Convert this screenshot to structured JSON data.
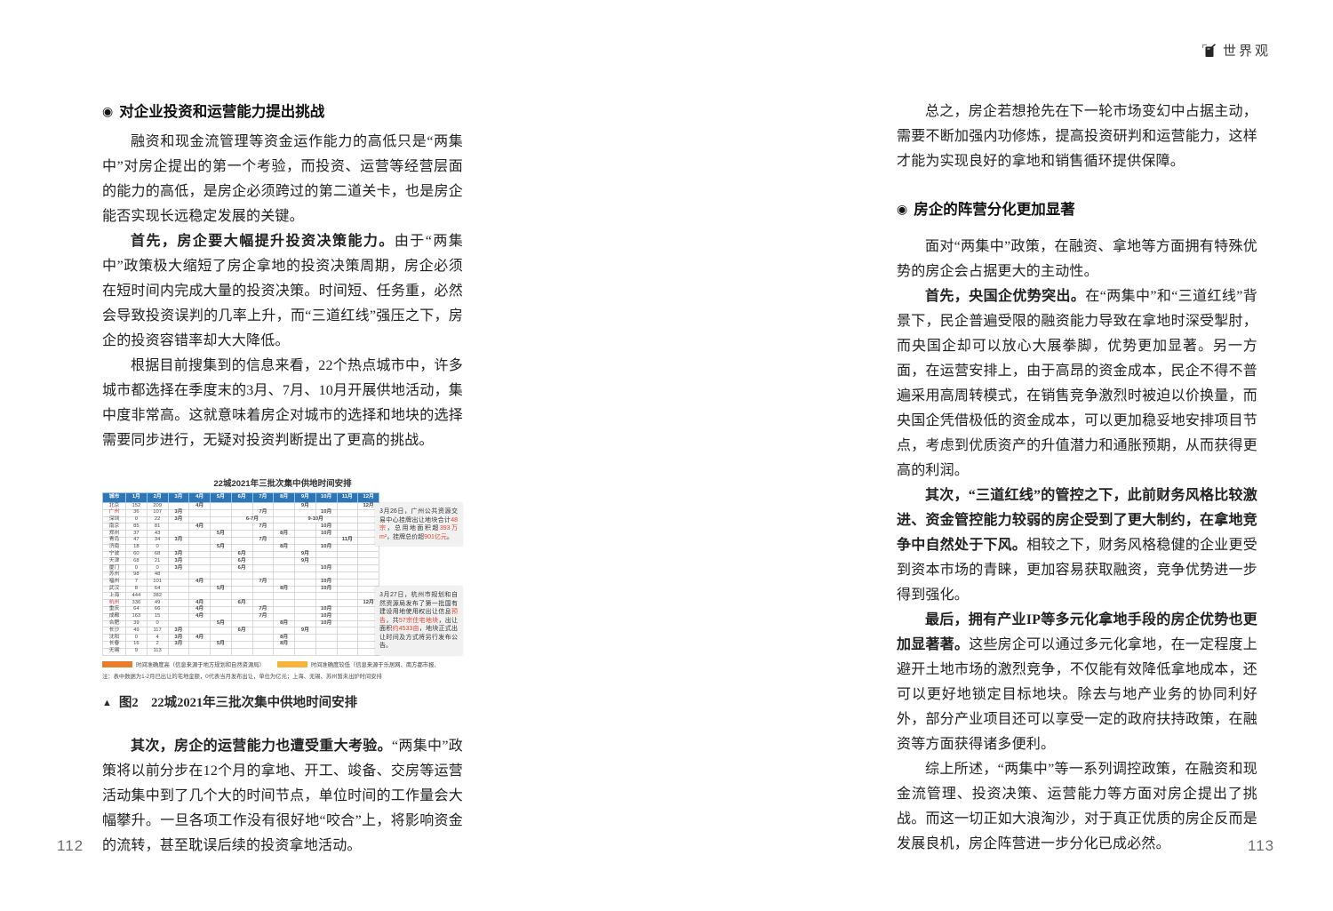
{
  "header": {
    "brand": "世界观"
  },
  "page_left": {
    "page_number": "112",
    "heading_bullet": "◉",
    "section_heading": "对企业投资和运营能力提出挑战",
    "paragraphs": [
      {
        "bold": "",
        "text": "融资和现金流管理等资金运作能力的高低只是“两集中”对房企提出的第一个考验，而投资、运营等经营层面的能力的高低，是房企必须跨过的第二道关卡，也是房企能否实现长远稳定发展的关键。"
      },
      {
        "bold": "首先，房企要大幅提升投资决策能力。",
        "text": "由于“两集中”政策极大缩短了房企拿地的投资决策周期，房企必须在短时间内完成大量的投资决策。时间短、任务重，必然会导致投资误判的几率上升，而“三道红线”强压之下，房企的投资容错率却大大降低。"
      },
      {
        "bold": "",
        "text": "根据目前搜集到的信息来看，22个热点城市中，许多城市都选择在季度末的3月、7月、10月开展供地活动，集中度非常高。这就意味着房企对城市的选择和地块的选择需要同步进行，无疑对投资判断提出了更高的挑战。"
      }
    ],
    "caption_marker": "▲",
    "caption": "图2　22城2021年三批次集中供地时间安排",
    "paragraphs_after": [
      {
        "bold": "其次，房企的运营能力也遭受重大考验。",
        "text": "“两集中”政策将以前分步在12个月的拿地、开工、竣备、交房等运营活动集中到了几个大的时间节点，单位时间的工作量会大幅攀升。一旦各项工作没有很好地“咬合”上，将影响资金的流转，甚至耽误后续的投资拿地活动。"
      }
    ]
  },
  "page_right": {
    "page_number": "113",
    "heading_bullet": "◉",
    "paragraphs_top": [
      {
        "bold": "",
        "text": "总之，房企若想抢先在下一轮市场变幻中占据主动，需要不断加强内功修炼，提高投资研判和运营能力，这样才能为实现良好的拿地和销售循环提供保障。"
      }
    ],
    "section_heading": "房企的阵营分化更加显著",
    "paragraphs": [
      {
        "bold": "",
        "text": "面对“两集中”政策，在融资、拿地等方面拥有特殊优势的房企会占据更大的主动性。"
      },
      {
        "bold": "首先，央国企优势突出。",
        "text": "在“两集中”和“三道红线”背景下，民企普遍受限的融资能力导致在拿地时深受掣肘，而央国企却可以放心大展拳脚，优势更加显著。另一方面，在运营安排上，由于高昂的资金成本，民企不得不普遍采用高周转模式，在销售竞争激烈时被迫以价换量，而央国企凭借极低的资金成本，可以更加稳妥地安排项目节点，考虑到优质资产的升值潜力和通胀预期，从而获得更高的利润。"
      },
      {
        "bold": "其次，“三道红线”的管控之下，此前财务风格比较激进、资金管控能力较弱的房企受到了更大制约，在拿地竞争中自然处于下风。",
        "text": "相较之下，财务风格稳健的企业更受到资本市场的青睐，更加容易获取融资，竞争优势进一步得到强化。"
      },
      {
        "bold": "最后，拥有产业IP等多元化拿地手段的房企优势也更加显著著。",
        "text": "这些房企可以通过多元化拿地，在一定程度上避开土地市场的激烈竞争，不仅能有效降低拿地成本，还可以更好地锁定目标地块。除去与地产业务的协同利好外，部分产业项目还可以享受一定的政府扶持政策，在融资等方面获得诸多便利。"
      },
      {
        "bold": "",
        "text": "综上所述，“两集中”等一系列调控政策，在融资和现金流管理、投资决策、运营能力等方面对房企提出了挑战。而这一切正如大浪淘沙，对于真正优质的房企反而是发展良机，房企阵营进一步分化已成必然。"
      }
    ]
  },
  "figure": {
    "title": "22城2021年三批次集中供地时间安排",
    "columns": [
      "城市",
      "1月",
      "2月",
      "3月",
      "4月",
      "5月",
      "6月",
      "7月",
      "8月",
      "9月",
      "10月",
      "11月",
      "12月"
    ],
    "colors": {
      "header_blue": "#2e75b6",
      "high_orange": "#e87d2b",
      "low_yellow": "#f6b43a",
      "city_red": "#d0342c",
      "annotation_red": "#e8442e"
    },
    "rows": [
      {
        "city": "北京",
        "red": false,
        "jan": "152",
        "feb": "209",
        "cells": [
          {
            "m": 4,
            "span": 1,
            "label": "4月",
            "lvl": "high"
          },
          {
            "m": 9,
            "span": 1,
            "label": "9月",
            "lvl": "high"
          },
          {
            "m": 12,
            "span": 1,
            "label": "12月",
            "lvl": "high"
          }
        ]
      },
      {
        "city": "广州",
        "red": true,
        "jan": "36",
        "feb": "107",
        "cells": [
          {
            "m": 3,
            "span": 1,
            "label": "3月",
            "lvl": "high"
          },
          {
            "m": 7,
            "span": 1,
            "label": "7月",
            "lvl": "low"
          },
          {
            "m": 10,
            "span": 1,
            "label": "10月",
            "lvl": "low"
          }
        ]
      },
      {
        "city": "深圳",
        "red": false,
        "jan": "0",
        "feb": "22",
        "cells": [
          {
            "m": 3,
            "span": 1,
            "label": "3月",
            "lvl": "high"
          },
          {
            "m": 6,
            "span": 2,
            "label": "6-7月",
            "lvl": "high"
          },
          {
            "m": 9,
            "span": 2,
            "label": "9-10月",
            "lvl": "high"
          }
        ]
      },
      {
        "city": "南京",
        "red": false,
        "jan": "85",
        "feb": "81",
        "cells": [
          {
            "m": 4,
            "span": 1,
            "label": "4月",
            "lvl": "high"
          },
          {
            "m": 7,
            "span": 1,
            "label": "7月",
            "lvl": "low"
          },
          {
            "m": 10,
            "span": 1,
            "label": "10月",
            "lvl": "low"
          }
        ]
      },
      {
        "city": "郑州",
        "red": false,
        "jan": "37",
        "feb": "43",
        "cells": [
          {
            "m": 5,
            "span": 1,
            "label": "5月",
            "lvl": "low"
          },
          {
            "m": 8,
            "span": 1,
            "label": "8月",
            "lvl": "high"
          },
          {
            "m": 10,
            "span": 1,
            "label": "10月",
            "lvl": "low"
          }
        ]
      },
      {
        "city": "青岛",
        "red": false,
        "jan": "47",
        "feb": "34",
        "cells": [
          {
            "m": 3,
            "span": 1,
            "label": "3月",
            "lvl": "high"
          },
          {
            "m": 7,
            "span": 1,
            "label": "7月",
            "lvl": "low"
          },
          {
            "m": 11,
            "span": 1,
            "label": "11月",
            "lvl": "low"
          }
        ]
      },
      {
        "city": "济南",
        "red": false,
        "jan": "18",
        "feb": "0",
        "cells": [
          {
            "m": 5,
            "span": 1,
            "label": "5月",
            "lvl": "low"
          },
          {
            "m": 8,
            "span": 1,
            "label": "8月",
            "lvl": "high"
          },
          {
            "m": 10,
            "span": 1,
            "label": "10月",
            "lvl": "high"
          }
        ]
      },
      {
        "city": "宁波",
        "red": false,
        "jan": "60",
        "feb": "68",
        "cells": [
          {
            "m": 3,
            "span": 1,
            "label": "3月",
            "lvl": "low"
          },
          {
            "m": 6,
            "span": 1,
            "label": "6月",
            "lvl": "low"
          },
          {
            "m": 9,
            "span": 1,
            "label": "9月",
            "lvl": "low"
          }
        ]
      },
      {
        "city": "天津",
        "red": false,
        "jan": "68",
        "feb": "21",
        "cells": [
          {
            "m": 3,
            "span": 1,
            "label": "3月",
            "lvl": "low"
          },
          {
            "m": 6,
            "span": 1,
            "label": "6月",
            "lvl": "high"
          },
          {
            "m": 9,
            "span": 1,
            "label": "9月",
            "lvl": "high"
          }
        ]
      },
      {
        "city": "厦门",
        "red": false,
        "jan": "0",
        "feb": "0",
        "cells": [
          {
            "m": 3,
            "span": 1,
            "label": "3月",
            "lvl": "low"
          },
          {
            "m": 6,
            "span": 1,
            "label": "6月",
            "lvl": "low"
          },
          {
            "m": 10,
            "span": 1,
            "label": "10月",
            "lvl": "low"
          }
        ]
      },
      {
        "city": "苏州",
        "red": false,
        "jan": "98",
        "feb": "48",
        "cells": []
      },
      {
        "city": "福州",
        "red": false,
        "jan": "7",
        "feb": "101",
        "cells": [
          {
            "m": 4,
            "span": 1,
            "label": "4月",
            "lvl": "high"
          },
          {
            "m": 7,
            "span": 1,
            "label": "7月",
            "lvl": "low"
          },
          {
            "m": 10,
            "span": 1,
            "label": "10月",
            "lvl": "high"
          }
        ]
      },
      {
        "city": "武汉",
        "red": false,
        "jan": "8",
        "feb": "64",
        "cells": [
          {
            "m": 5,
            "span": 1,
            "label": "5月",
            "lvl": "low"
          },
          {
            "m": 8,
            "span": 1,
            "label": "8月",
            "lvl": "low"
          },
          {
            "m": 10,
            "span": 1,
            "label": "10月",
            "lvl": "low"
          }
        ]
      },
      {
        "city": "上海",
        "red": false,
        "jan": "444",
        "feb": "382",
        "cells": []
      },
      {
        "city": "杭州",
        "red": true,
        "jan": "336",
        "feb": "49",
        "cells": [
          {
            "m": 4,
            "span": 1,
            "label": "4月",
            "lvl": "high"
          },
          {
            "m": 6,
            "span": 1,
            "label": "6月",
            "lvl": "low"
          },
          {
            "m": 12,
            "span": 1,
            "label": "12月",
            "lvl": "high"
          }
        ]
      },
      {
        "city": "重庆",
        "red": false,
        "jan": "64",
        "feb": "66",
        "cells": [
          {
            "m": 4,
            "span": 1,
            "label": "4月",
            "lvl": "high"
          },
          {
            "m": 7,
            "span": 1,
            "label": "7月",
            "lvl": "low"
          },
          {
            "m": 10,
            "span": 1,
            "label": "10月",
            "lvl": "low"
          }
        ]
      },
      {
        "city": "成都",
        "red": false,
        "jan": "163",
        "feb": "15",
        "cells": [
          {
            "m": 4,
            "span": 1,
            "label": "4月",
            "lvl": "high"
          },
          {
            "m": 7,
            "span": 1,
            "label": "7月",
            "lvl": "low"
          },
          {
            "m": 10,
            "span": 1,
            "label": "10月",
            "lvl": "low"
          }
        ]
      },
      {
        "city": "合肥",
        "red": false,
        "jan": "39",
        "feb": "0",
        "cells": [
          {
            "m": 5,
            "span": 1,
            "label": "5月",
            "lvl": "low"
          },
          {
            "m": 8,
            "span": 1,
            "label": "8月",
            "lvl": "low"
          },
          {
            "m": 10,
            "span": 1,
            "label": "10月",
            "lvl": "low"
          }
        ]
      },
      {
        "city": "长沙",
        "red": false,
        "jan": "49",
        "feb": "117",
        "cells": [
          {
            "m": 3,
            "span": 1,
            "label": "3月",
            "lvl": "low"
          },
          {
            "m": 6,
            "span": 1,
            "label": "6月",
            "lvl": "low"
          },
          {
            "m": 9,
            "span": 1,
            "label": "9月",
            "lvl": "low"
          }
        ]
      },
      {
        "city": "沈阳",
        "red": false,
        "jan": "0",
        "feb": "4",
        "cells": [
          {
            "m": 3,
            "span": 1,
            "label": "3月",
            "lvl": "low"
          },
          {
            "m": 4,
            "span": 1,
            "label": "4月",
            "lvl": "high"
          },
          {
            "m": 8,
            "span": 1,
            "label": "8月",
            "lvl": "low"
          }
        ]
      },
      {
        "city": "长春",
        "red": false,
        "jan": "16",
        "feb": "2",
        "cells": [
          {
            "m": 3,
            "span": 1,
            "label": "3月",
            "lvl": "high"
          },
          {
            "m": 5,
            "span": 1,
            "label": "5月",
            "lvl": "low"
          },
          {
            "m": 8,
            "span": 1,
            "label": "8月",
            "lvl": "high"
          }
        ]
      },
      {
        "city": "无锡",
        "red": false,
        "jan": "9",
        "feb": "113",
        "cells": []
      }
    ],
    "legend": [
      {
        "level": "high",
        "text": "时间准确度高（信息来源于地方规划和自然资源局）"
      },
      {
        "level": "low",
        "text": "时间准确度较低（信息来源于乐居网、南方都市报、"
      }
    ],
    "note": "注：表中数据为1-2月已出让的宅地金额，0代表当月发布出让，单位为亿元；上海、无锡、苏州暂未出炉时间安排",
    "annotations": [
      {
        "segments": [
          {
            "t": "3月26日，广州公共资源交易中心挂牌出让地块合计",
            "red": false
          },
          {
            "t": "48宗",
            "red": true
          },
          {
            "t": "，总用地面积超",
            "red": false
          },
          {
            "t": "393万m²",
            "red": true
          },
          {
            "t": "，挂牌总价超",
            "red": false
          },
          {
            "t": "901亿元",
            "red": true
          },
          {
            "t": "。",
            "red": false
          }
        ]
      },
      {
        "segments": [
          {
            "t": "3月27日，杭州市规划和自然资源局发布了第一批国有建设用地使用权出让信息",
            "red": false
          },
          {
            "t": "预告",
            "red": true
          },
          {
            "t": "，共",
            "red": false
          },
          {
            "t": "57宗住宅地块",
            "red": true
          },
          {
            "t": "，出让面积",
            "red": false
          },
          {
            "t": "约4533亩",
            "red": true
          },
          {
            "t": "，地块正式出让时间及方式将另行发布公告。",
            "red": false
          }
        ]
      }
    ]
  }
}
